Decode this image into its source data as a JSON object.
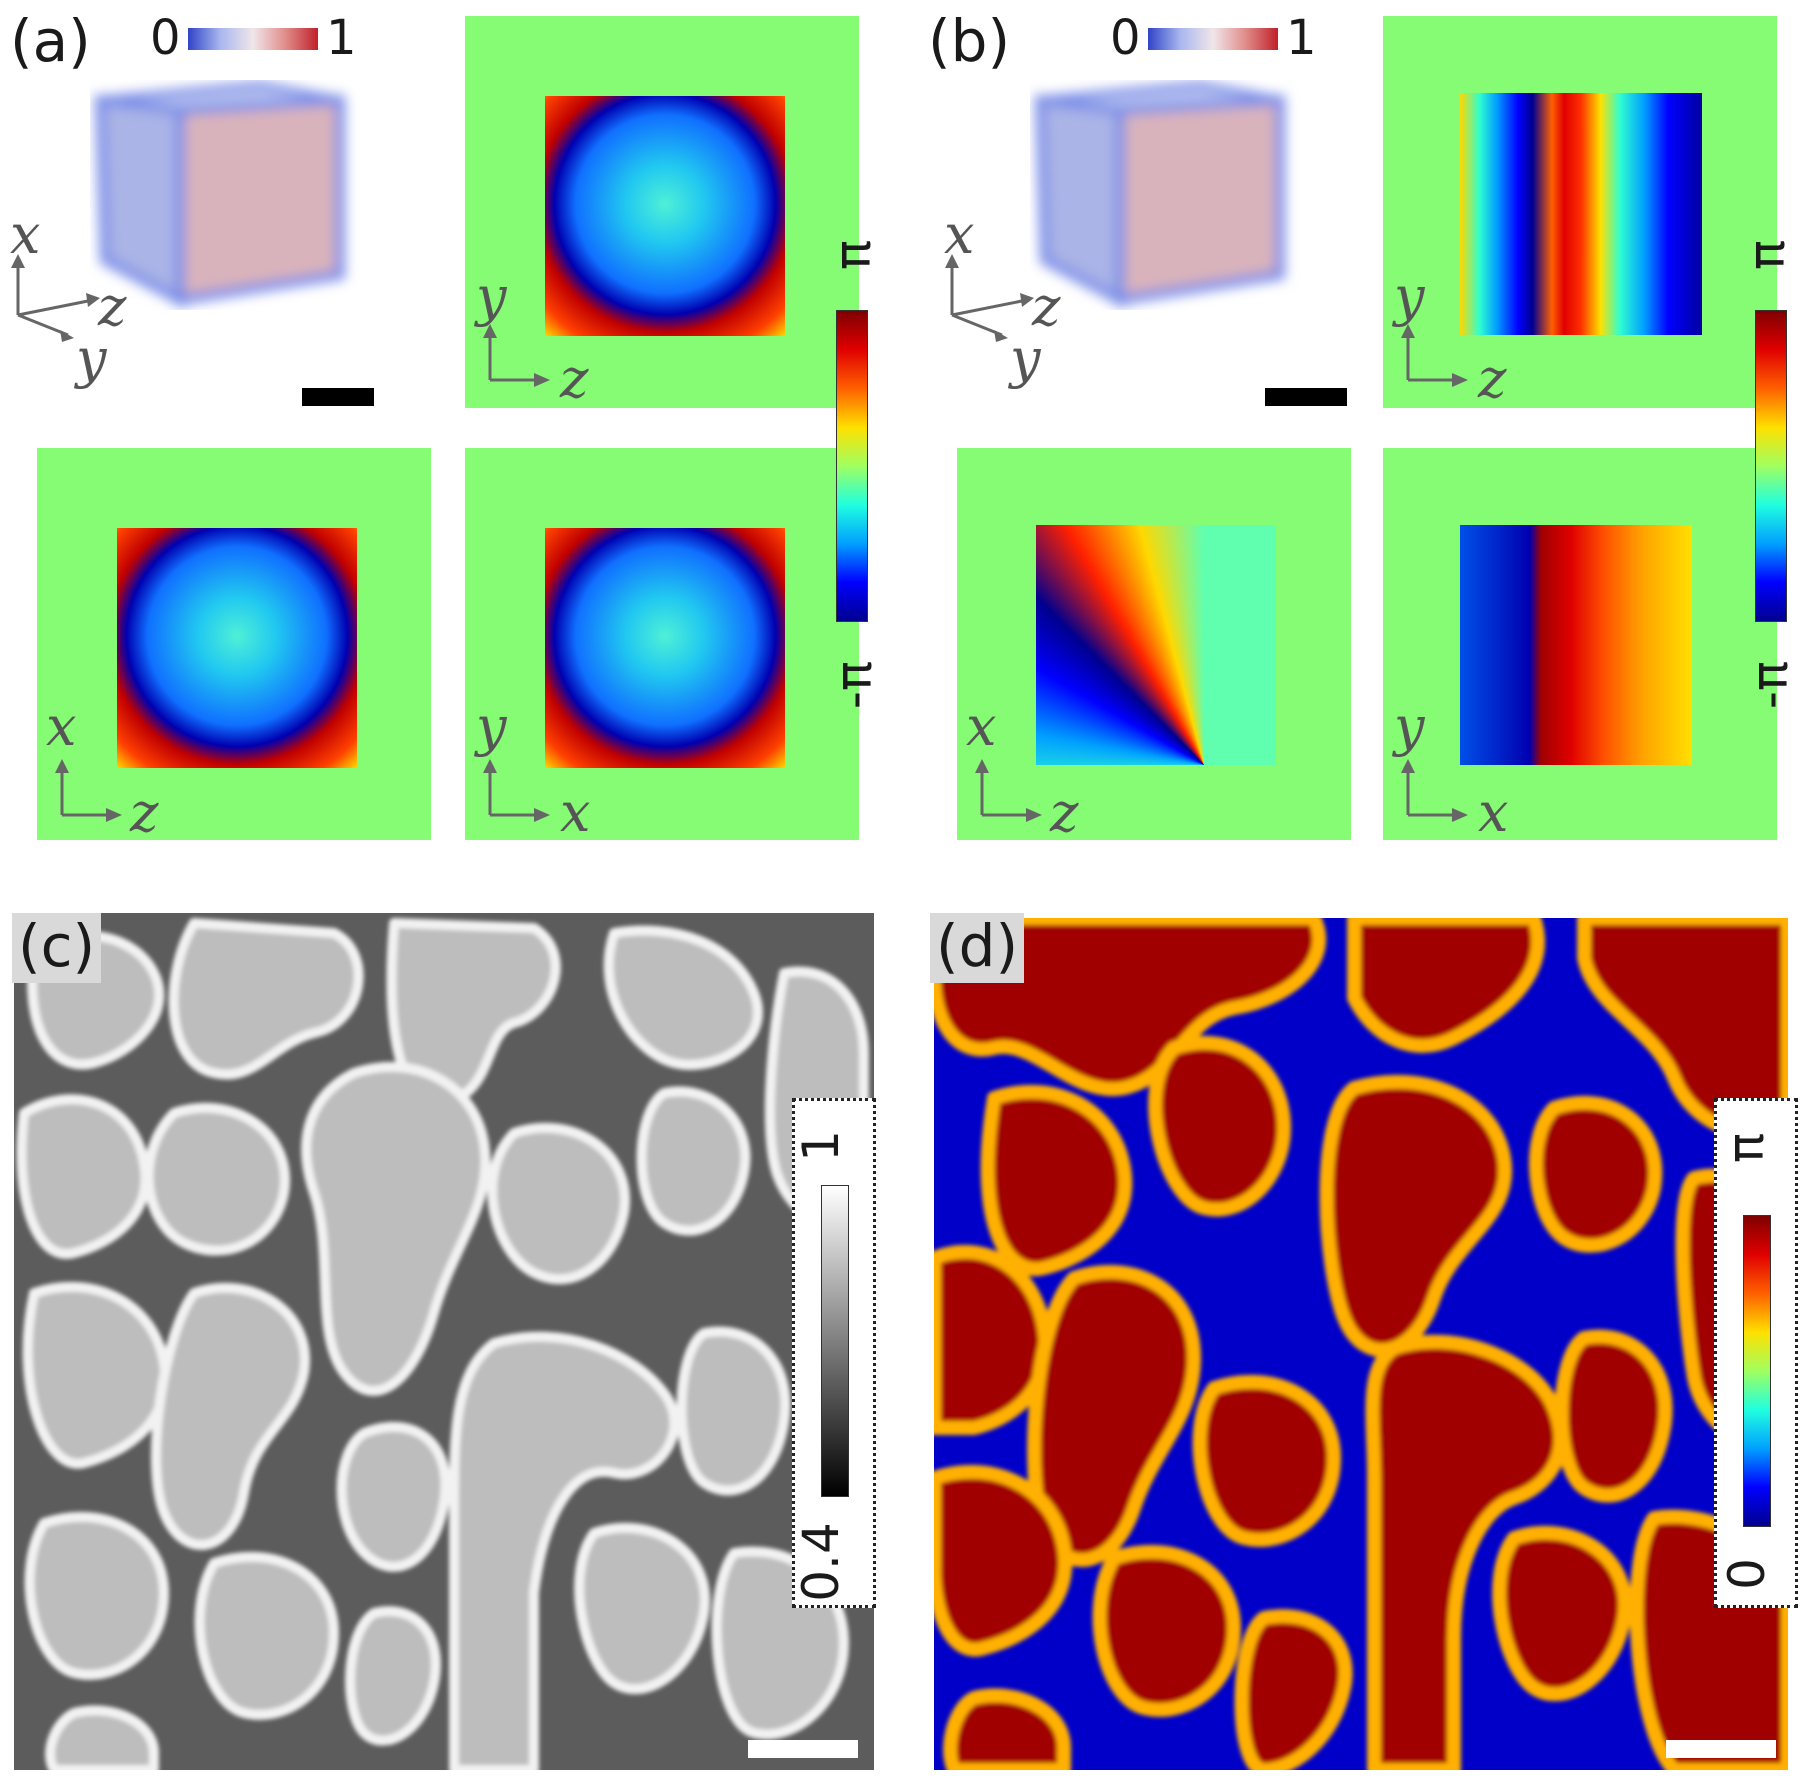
{
  "panels": {
    "a": {
      "label": "(a)"
    },
    "b": {
      "label": "(b)"
    },
    "c": {
      "label": "(c)"
    },
    "d": {
      "label": "(d)"
    }
  },
  "density_colorbar": {
    "min": "0",
    "max": "1"
  },
  "phase_colorbar": {
    "top": "π",
    "bottom": "-π"
  },
  "grey_colorbar": {
    "top": "1",
    "bottom": "0.4"
  },
  "phase_colorbar_d": {
    "top": "π",
    "bottom": "0"
  },
  "axes": {
    "x": "x",
    "y": "y",
    "z": "z"
  },
  "colors": {
    "background_green": "#85fc74",
    "jet_red": "#a00000",
    "jet_blue": "#0000c8"
  }
}
